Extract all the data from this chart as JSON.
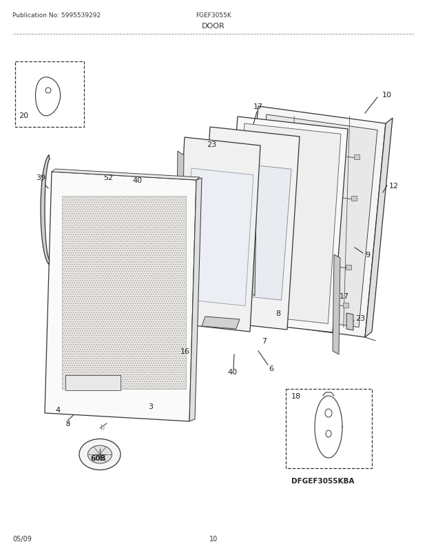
{
  "title_left": "Publication No: 5995539292",
  "title_center": "FGEF3055K",
  "subtitle": "DOOR",
  "footer_left": "05/09",
  "footer_center": "10",
  "bg_color": "#ffffff",
  "lc": "#333333",
  "lc_thin": "#555555"
}
